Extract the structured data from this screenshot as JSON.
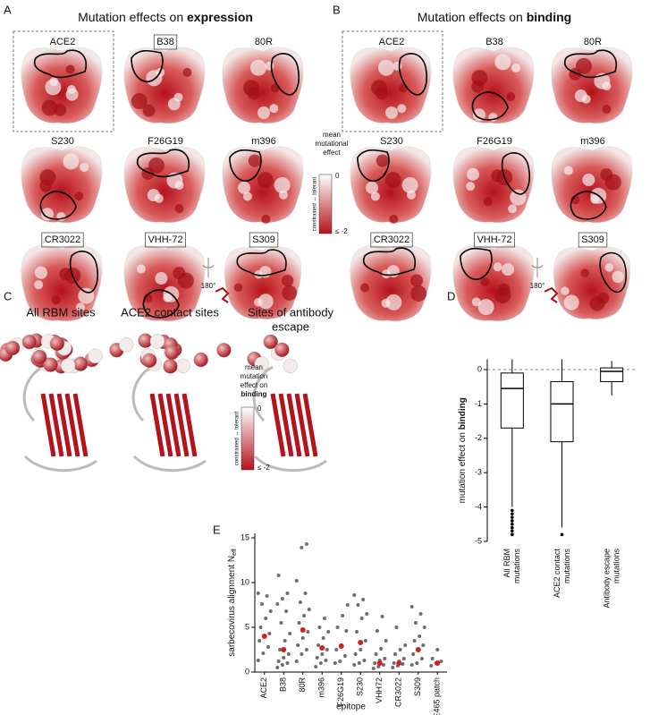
{
  "panels": {
    "A": {
      "letter": "A",
      "title": "Mutation effects on ",
      "title_bold": "expression",
      "labels": [
        "ACE2",
        "B38",
        "80R",
        "S230",
        "F26G19",
        "m396",
        "CR3022",
        "VHH-72",
        "S309"
      ],
      "rotation": "180°",
      "colorbar": {
        "title": [
          "mean",
          "mutational",
          "effect"
        ],
        "top": "0",
        "bottom": "≤ -2",
        "axis": "constrained ↔ tolerant"
      }
    },
    "B": {
      "letter": "B",
      "title": "Mutation effects on ",
      "title_bold": "binding",
      "labels": [
        "ACE2",
        "B38",
        "80R",
        "S230",
        "F26G19",
        "m396",
        "CR3022",
        "VHH-72",
        "S309"
      ],
      "rotation": "180°"
    },
    "C": {
      "letter": "C",
      "titles": [
        [
          "All RBM sites"
        ],
        [
          "ACE2 contact sites"
        ],
        [
          "Sites of antibody",
          "escape"
        ]
      ],
      "colorbar": {
        "title": [
          "mean",
          "mutation",
          "effect on"
        ],
        "title_bold": "binding",
        "top": "0",
        "bottom": "≤ -2",
        "axis": "constrained ↔ tolerant"
      }
    }
  },
  "chart_data": [
    {
      "type": "box",
      "panel": "D",
      "y_label": "mutation effect on ",
      "y_label_bold": "binding",
      "categories": [
        [
          "All RBM",
          "mutations"
        ],
        [
          "ACE2 contact",
          "mutations"
        ],
        [
          "Antibody escape",
          "mutations"
        ]
      ],
      "boxes": [
        {
          "low": -4.0,
          "q1": -1.7,
          "median": -0.55,
          "q3": -0.1,
          "high": 0.3,
          "outliers": [
            -4.1,
            -4.2,
            -4.3,
            -4.4,
            -4.5,
            -4.6,
            -4.7,
            -4.8
          ]
        },
        {
          "low": -4.6,
          "q1": -2.1,
          "median": -1.0,
          "q3": -0.35,
          "high": 0.3,
          "outliers": [
            -4.8
          ]
        },
        {
          "low": -0.75,
          "q1": -0.35,
          "median": -0.05,
          "q3": 0.05,
          "high": 0.25,
          "outliers": []
        }
      ],
      "ylim": [
        -5,
        0.3
      ],
      "yticks": [
        0,
        -1,
        -2,
        -3,
        -4,
        -5
      ],
      "reference_line": 0
    },
    {
      "type": "strip",
      "panel": "E",
      "y_label": "sarbecovirus alignment N",
      "y_label_sub": "eff",
      "x_label": "epitope",
      "categories": [
        "ACE2",
        "B38",
        "80R",
        "m396",
        "F26G19",
        "S230",
        "VHH72",
        "CR3022",
        "S309",
        "E465 patch"
      ],
      "points": [
        [
          1.3,
          2.1,
          2.8,
          3.5,
          4.0,
          4.3,
          5.0,
          6.0,
          6.8,
          7.6,
          8.5,
          8.8
        ],
        [
          0.5,
          0.8,
          1.0,
          1.2,
          1.6,
          2.0,
          2.5,
          3.5,
          4.3,
          5.5,
          6.8,
          7.6,
          8.2,
          8.8,
          10.8
        ],
        [
          1.2,
          2.0,
          2.5,
          3.0,
          3.8,
          4.5,
          5.5,
          6.3,
          7.0,
          7.8,
          8.8,
          10.2,
          13.9,
          14.3
        ],
        [
          0.6,
          1.0,
          1.3,
          1.6,
          2.0,
          2.5,
          3.0,
          3.8,
          4.5,
          5.0,
          6.0
        ],
        [
          1.0,
          1.2,
          1.8,
          2.5,
          3.0,
          4.6,
          5.0,
          6.3,
          7.5
        ],
        [
          0.8,
          1.0,
          1.3,
          2.0,
          2.5,
          3.5,
          4.5,
          6.0,
          6.5,
          7.5,
          8.1,
          8.6
        ],
        [
          0.4,
          0.6,
          0.8,
          1.0,
          1.3,
          1.5,
          2.0,
          2.6,
          3.5,
          4.6,
          6.2
        ],
        [
          0.5,
          0.7,
          0.9,
          1.0,
          1.2,
          1.5,
          2.0,
          2.5,
          3.0,
          5.0
        ],
        [
          0.8,
          1.0,
          1.5,
          2.0,
          2.5,
          3.0,
          3.5,
          4.0,
          5.0,
          5.5,
          6.5,
          7.3
        ],
        [
          0.7,
          1.0,
          1.2,
          1.5,
          2.5
        ]
      ],
      "medians": [
        4.0,
        2.5,
        4.7,
        2.7,
        2.9,
        3.3,
        1.0,
        1.0,
        2.5,
        1.0
      ],
      "point_color": "#555555",
      "median_color": "#cc2222",
      "ylim": [
        0,
        15.5
      ],
      "yticks": [
        0,
        5,
        10,
        15
      ]
    }
  ]
}
